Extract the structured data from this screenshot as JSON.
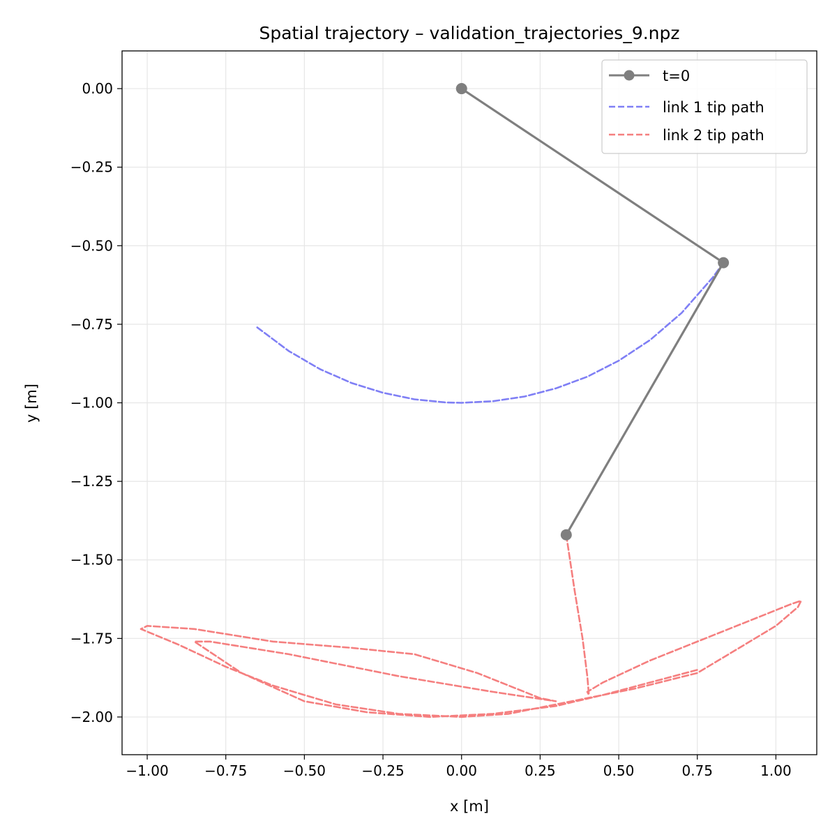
{
  "chart_data": {
    "type": "line",
    "title": "Spatial trajectory – validation_trajectories_9.npz",
    "xlabel": "x [m]",
    "ylabel": "y [m]",
    "xlim": [
      -1.08,
      1.13
    ],
    "ylim": [
      -2.12,
      0.12
    ],
    "xticks": [
      -1.0,
      -0.75,
      -0.5,
      -0.25,
      0.0,
      0.25,
      0.5,
      0.75,
      1.0
    ],
    "yticks": [
      0.0,
      -0.25,
      -0.5,
      -0.75,
      -1.0,
      -1.25,
      -1.5,
      -1.75,
      -2.0
    ],
    "xtick_labels": [
      "−1.00",
      "−0.75",
      "−0.50",
      "−0.25",
      "0.00",
      "0.25",
      "0.50",
      "0.75",
      "1.00"
    ],
    "ytick_labels": [
      "0.00",
      "−0.25",
      "−0.50",
      "−0.75",
      "−1.00",
      "−1.25",
      "−1.50",
      "−1.75",
      "−2.00"
    ],
    "grid": true,
    "legend_position": "top-right",
    "colors": {
      "arm": "#7f7f7f",
      "link1": "#7f7ff5",
      "link2": "#f57f7f",
      "grid": "#e6e6e6"
    },
    "series": [
      {
        "name": "t=0",
        "style": "solid-markers",
        "x": [
          0.0,
          0.833,
          0.333
        ],
        "y": [
          0.0,
          -0.554,
          -1.42
        ]
      },
      {
        "name": "link 1 tip path",
        "style": "dashed",
        "x": [
          -0.65,
          -0.55,
          -0.45,
          -0.35,
          -0.25,
          -0.15,
          -0.05,
          0.0,
          0.1,
          0.2,
          0.3,
          0.4,
          0.5,
          0.6,
          0.7,
          0.8,
          0.833
        ],
        "y": [
          -0.76,
          -0.835,
          -0.893,
          -0.937,
          -0.968,
          -0.989,
          -0.999,
          -1.0,
          -0.995,
          -0.98,
          -0.954,
          -0.917,
          -0.866,
          -0.8,
          -0.714,
          -0.6,
          -0.554
        ]
      },
      {
        "name": "link 2 tip path",
        "style": "dashed",
        "x": [
          0.333,
          0.36,
          0.385,
          0.4,
          0.405,
          0.4,
          0.45,
          0.6,
          0.8,
          0.95,
          1.05,
          1.08,
          1.07,
          1.0,
          0.85,
          0.75,
          0.55,
          0.35,
          0.15,
          0.0,
          -0.2,
          -0.4,
          -0.6,
          -0.75,
          -0.9,
          -1.02,
          -1.0,
          -0.85,
          -0.6,
          -0.35,
          -0.15,
          0.05,
          0.25,
          0.3,
          0.1,
          -0.2,
          -0.55,
          -0.8,
          -0.85,
          -0.7,
          -0.5,
          -0.3,
          -0.1,
          0.1,
          0.3,
          0.45,
          0.6,
          0.75
        ],
        "y": [
          -1.42,
          -1.6,
          -1.75,
          -1.87,
          -1.93,
          -1.92,
          -1.89,
          -1.82,
          -1.74,
          -1.68,
          -1.64,
          -1.63,
          -1.65,
          -1.71,
          -1.8,
          -1.86,
          -1.91,
          -1.95,
          -1.99,
          -2.0,
          -1.99,
          -1.96,
          -1.9,
          -1.84,
          -1.77,
          -1.72,
          -1.71,
          -1.72,
          -1.76,
          -1.78,
          -1.8,
          -1.86,
          -1.94,
          -1.95,
          -1.92,
          -1.87,
          -1.8,
          -1.76,
          -1.76,
          -1.86,
          -1.95,
          -1.985,
          -2.0,
          -1.99,
          -1.965,
          -1.93,
          -1.89,
          -1.85
        ]
      }
    ]
  }
}
